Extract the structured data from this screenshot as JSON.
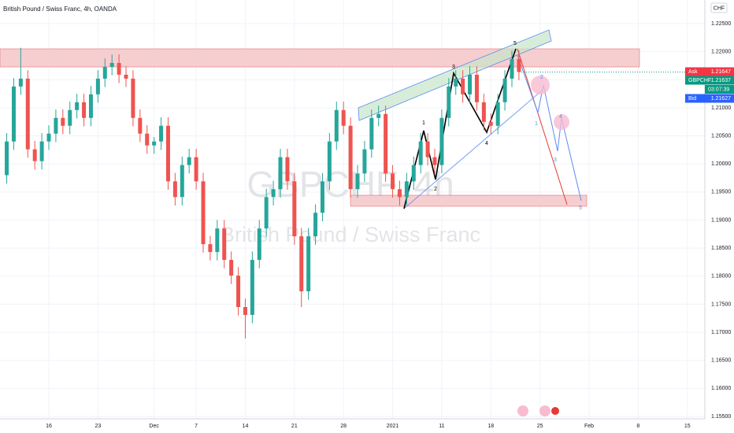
{
  "chart_data": {
    "type": "candlestick",
    "title": "British Pound / Swiss Franc, 4h, OANDA",
    "currency": "CHF",
    "watermark": [
      "GBPCHF, 4h",
      "British Pound / Swiss Franc"
    ],
    "up_color": "#26a69a",
    "down_color": "#ef5350",
    "xlim": [
      -6.96,
      93.5
    ],
    "ylim": [
      1.15458,
      1.22921
    ],
    "xticks": [
      {
        "value": 0,
        "label": "16"
      },
      {
        "value": 7,
        "label": "23"
      },
      {
        "value": 15,
        "label": "Dec"
      },
      {
        "value": 21,
        "label": "7"
      },
      {
        "value": 28,
        "label": "14"
      },
      {
        "value": 35,
        "label": "21"
      },
      {
        "value": 42,
        "label": "28"
      },
      {
        "value": 49,
        "label": "2021"
      },
      {
        "value": 56,
        "label": "11"
      },
      {
        "value": 63,
        "label": "18"
      },
      {
        "value": 70,
        "label": "25"
      },
      {
        "value": 77,
        "label": "Feb"
      },
      {
        "value": 84,
        "label": "8"
      },
      {
        "value": 91,
        "label": "15"
      }
    ],
    "yticks": [
      {
        "value": 1.155,
        "label": "1.15500"
      },
      {
        "value": 1.16,
        "label": "1.16000"
      },
      {
        "value": 1.165,
        "label": "1.16500"
      },
      {
        "value": 1.17,
        "label": "1.17000"
      },
      {
        "value": 1.175,
        "label": "1.17500"
      },
      {
        "value": 1.18,
        "label": "1.18000"
      },
      {
        "value": 1.185,
        "label": "1.18500"
      },
      {
        "value": 1.19,
        "label": "1.19000"
      },
      {
        "value": 1.195,
        "label": "1.19500"
      },
      {
        "value": 1.2,
        "label": "1.20000"
      },
      {
        "value": 1.205,
        "label": "1.20500"
      },
      {
        "value": 1.21,
        "label": "1.21000"
      },
      {
        "value": 1.215,
        "label": "1.21500"
      },
      {
        "value": 1.22,
        "label": "1.22000"
      },
      {
        "value": 1.225,
        "label": "1.22500"
      }
    ],
    "x": [
      -6,
      -5,
      -4,
      -3,
      -2,
      -1,
      0,
      1,
      2,
      3,
      4,
      5,
      6,
      7,
      8,
      9,
      10,
      11,
      12,
      13,
      14,
      15,
      16,
      17,
      18,
      19,
      20,
      21,
      22,
      23,
      24,
      25,
      26,
      27,
      28,
      29,
      30,
      31,
      32,
      33,
      34,
      35,
      36,
      37,
      38,
      39,
      40,
      41,
      42,
      43,
      44,
      45,
      46,
      47,
      48,
      49,
      50,
      51,
      52,
      53,
      54,
      55,
      56,
      57,
      58,
      59,
      60,
      61,
      62,
      63,
      64,
      65,
      66,
      67
    ],
    "open": [
      1.198,
      1.204,
      1.2138,
      1.2152,
      1.2026,
      1.2005,
      1.204,
      1.2054,
      1.2082,
      1.2068,
      1.2096,
      1.211,
      1.2082,
      1.2124,
      1.2152,
      1.2173,
      1.218,
      1.2159,
      1.2152,
      1.2082,
      1.2054,
      1.2033,
      1.204,
      1.2068,
      1.1969,
      1.1941,
      1.1998,
      1.2012,
      1.1969,
      1.1857,
      1.1843,
      1.1885,
      1.1829,
      1.1801,
      1.1745,
      1.1731,
      1.1829,
      1.1885,
      1.1941,
      1.1955,
      1.2012,
      1.1969,
      1.1871,
      1.1773,
      1.1871,
      1.1913,
      1.1969,
      1.204,
      1.2096,
      1.2068,
      1.1955,
      1.1983,
      1.2026,
      1.2082,
      1.2089,
      1.1983,
      1.1955,
      1.1941,
      1.1969,
      1.1998,
      1.204,
      1.2012,
      1.1998,
      1.2082,
      1.2138,
      1.2152,
      1.2124,
      1.2159,
      1.211,
      1.2075,
      1.2068,
      1.211,
      1.2152,
      1.2187
    ],
    "high": [
      1.2055,
      1.2153,
      1.2207,
      1.2167,
      1.2041,
      1.2055,
      1.2069,
      1.2097,
      1.2097,
      1.2111,
      1.2125,
      1.2125,
      1.2139,
      1.2167,
      1.2188,
      1.2195,
      1.2195,
      1.2174,
      1.2167,
      1.2097,
      1.2069,
      1.2048,
      1.2083,
      1.2083,
      1.1984,
      1.2013,
      1.2027,
      1.2027,
      1.1984,
      1.1872,
      1.19,
      1.19,
      1.1844,
      1.1816,
      1.176,
      1.1844,
      1.19,
      1.1956,
      1.197,
      1.2027,
      1.2027,
      1.1984,
      1.1886,
      1.1886,
      1.1928,
      1.1984,
      1.2055,
      1.2111,
      1.2111,
      1.2083,
      1.1998,
      1.2041,
      1.2097,
      1.2104,
      1.2104,
      1.1998,
      1.197,
      1.1984,
      1.2013,
      1.2055,
      1.2055,
      1.2027,
      1.2097,
      1.2153,
      1.2167,
      1.2167,
      1.2174,
      1.2174,
      1.2125,
      1.209,
      1.2125,
      1.2167,
      1.2202,
      1.2202
    ],
    "low": [
      1.1965,
      1.2025,
      1.2123,
      1.2011,
      1.199,
      1.199,
      1.2025,
      1.2039,
      1.2053,
      1.2053,
      1.2081,
      1.2067,
      1.2067,
      1.2109,
      1.2137,
      1.2158,
      1.2144,
      1.2137,
      1.2067,
      1.2039,
      1.2018,
      1.2018,
      1.2025,
      1.1954,
      1.1926,
      1.1926,
      1.1983,
      1.1954,
      1.1842,
      1.1828,
      1.1828,
      1.1814,
      1.1786,
      1.173,
      1.1689,
      1.1716,
      1.1814,
      1.187,
      1.1926,
      1.194,
      1.1954,
      1.1856,
      1.1745,
      1.1758,
      1.1856,
      1.1898,
      1.1954,
      1.2025,
      1.2053,
      1.194,
      1.194,
      1.1968,
      1.2011,
      1.2067,
      1.1968,
      1.194,
      1.1926,
      1.1926,
      1.1954,
      1.1983,
      1.1997,
      1.1983,
      1.1983,
      1.2067,
      1.2123,
      1.2109,
      1.2109,
      1.2095,
      1.206,
      1.2053,
      1.2053,
      1.2095,
      1.2137,
      1.2149
    ],
    "close": [
      1.204,
      1.2138,
      1.2152,
      1.2026,
      1.2005,
      1.204,
      1.2054,
      1.2082,
      1.2068,
      1.2096,
      1.211,
      1.2082,
      1.2124,
      1.2152,
      1.2173,
      1.218,
      1.2159,
      1.2152,
      1.2082,
      1.2054,
      1.2033,
      1.204,
      1.2068,
      1.1969,
      1.1941,
      1.1998,
      1.2012,
      1.1969,
      1.1857,
      1.1843,
      1.1885,
      1.1829,
      1.1801,
      1.1745,
      1.1731,
      1.1829,
      1.1885,
      1.1941,
      1.1955,
      1.2012,
      1.1969,
      1.1871,
      1.1773,
      1.1871,
      1.1913,
      1.1969,
      1.204,
      1.2096,
      1.2068,
      1.1955,
      1.1983,
      1.2026,
      1.2082,
      1.2089,
      1.1983,
      1.1955,
      1.1941,
      1.1969,
      1.1998,
      1.204,
      1.2012,
      1.1998,
      1.2082,
      1.2138,
      1.2152,
      1.2124,
      1.2159,
      1.211,
      1.2075,
      1.2068,
      1.211,
      1.2152,
      1.2187,
      1.2164
    ],
    "price_labels": [
      {
        "name": "Ask",
        "value": 1.21647,
        "color": "#f23645"
      },
      {
        "name": "GBPCHF",
        "value": 1.21637,
        "color": "#089981"
      },
      {
        "name": "Bid",
        "value": 1.21627,
        "color": "#2962ff"
      }
    ],
    "countdown": "03:07:39",
    "wave_labels": [
      "1",
      "2",
      "3",
      "4",
      "5",
      "2",
      "1",
      "4",
      "3",
      "5"
    ]
  }
}
